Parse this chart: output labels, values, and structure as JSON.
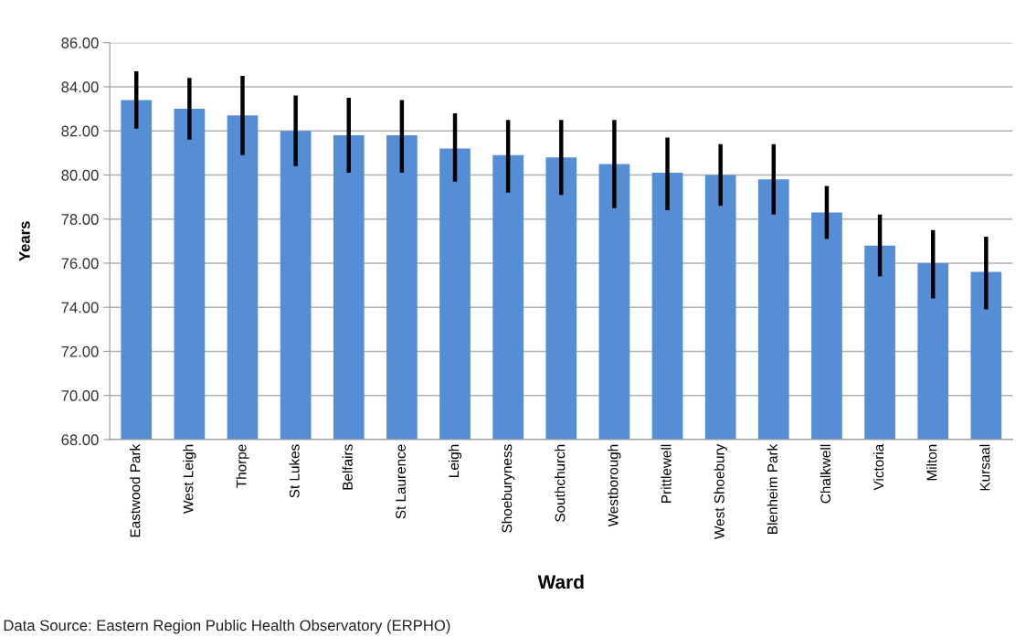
{
  "chart_data": {
    "type": "bar",
    "xlabel": "Ward",
    "ylabel": "Years",
    "categories": [
      "Eastwood Park",
      "West Leigh",
      "Thorpe",
      "St Lukes",
      "Belfairs",
      "St Laurence",
      "Leigh",
      "Shoeburyness",
      "Southchurch",
      "Westborough",
      "Prittlewell",
      "West Shoebury",
      "Blenheim Park",
      "Chalkwell",
      "Victoria",
      "Milton",
      "Kursaal"
    ],
    "values": [
      83.4,
      83.0,
      82.7,
      82.0,
      81.8,
      81.8,
      81.2,
      80.9,
      80.8,
      80.5,
      80.1,
      80.0,
      79.8,
      78.3,
      76.8,
      76.0,
      75.6
    ],
    "errors": [
      [
        82.1,
        84.7
      ],
      [
        81.6,
        84.4
      ],
      [
        80.9,
        84.5
      ],
      [
        80.4,
        83.6
      ],
      [
        80.1,
        83.5
      ],
      [
        80.1,
        83.4
      ],
      [
        79.7,
        82.8
      ],
      [
        79.2,
        82.5
      ],
      [
        79.1,
        82.5
      ],
      [
        78.5,
        82.5
      ],
      [
        78.4,
        81.7
      ],
      [
        78.6,
        81.4
      ],
      [
        78.2,
        81.4
      ],
      [
        77.1,
        79.5
      ],
      [
        75.4,
        78.2
      ],
      [
        74.4,
        77.5
      ],
      [
        73.9,
        77.2
      ]
    ],
    "color": "#558ed5",
    "ylim": [
      68,
      86
    ],
    "yticks": [
      {
        "value": 68,
        "label": "68.00"
      },
      {
        "value": 70,
        "label": "70.00"
      },
      {
        "value": 72,
        "label": "72.00"
      },
      {
        "value": 74,
        "label": "74.00"
      },
      {
        "value": 76,
        "label": "76.00"
      },
      {
        "value": 78,
        "label": "78.00"
      },
      {
        "value": 80,
        "label": "80.00"
      },
      {
        "value": 82,
        "label": "82.00"
      },
      {
        "value": 84,
        "label": "84.00"
      },
      {
        "value": 86,
        "label": "86.00"
      }
    ],
    "grid": "y",
    "annotations": [
      "Data Source: Eastern Region Public Health Observatory (ERPHO)"
    ]
  }
}
